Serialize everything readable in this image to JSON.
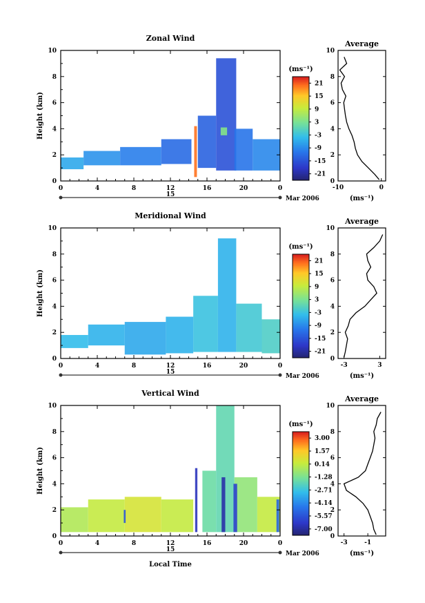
{
  "chart_data": [
    {
      "type": "heatmap",
      "title": "Zonal Wind",
      "ylabel": "Height (km)",
      "xlabel": "",
      "ylim": [
        0,
        10
      ],
      "xlim": [
        0,
        24
      ],
      "x_ticks": [
        "0",
        "4",
        "8",
        "12",
        "16",
        "20",
        "0"
      ],
      "y_ticks": [
        "0",
        "2",
        "4",
        "6",
        "8",
        "10"
      ],
      "date_bar": {
        "label": "15",
        "right_label": "Mar 2006"
      },
      "colorbar": {
        "unit": "(ms⁻¹)",
        "labels": [
          "21",
          "15",
          "9",
          "3",
          "-3",
          "-9",
          "-15",
          "-21"
        ],
        "range": [
          -24,
          24
        ]
      },
      "patches": [
        {
          "t": [
            0.0,
            2.5
          ],
          "h": [
            0.9,
            1.8
          ],
          "v": -6
        },
        {
          "t": [
            2.5,
            6.5
          ],
          "h": [
            1.2,
            2.3
          ],
          "v": -8
        },
        {
          "t": [
            6.5,
            11.0
          ],
          "h": [
            1.2,
            2.6
          ],
          "v": -10
        },
        {
          "t": [
            11.0,
            14.3
          ],
          "h": [
            1.3,
            3.2
          ],
          "v": -12
        },
        {
          "t": [
            15.0,
            17.0
          ],
          "h": [
            1.0,
            5.0
          ],
          "v": -13
        },
        {
          "t": [
            17.0,
            19.2
          ],
          "h": [
            0.8,
            9.4
          ],
          "v": -15
        },
        {
          "t": [
            19.0,
            21.0
          ],
          "h": [
            0.8,
            4.0
          ],
          "v": -11
        },
        {
          "t": [
            21.0,
            24.0
          ],
          "h": [
            0.8,
            3.2
          ],
          "v": -9
        },
        {
          "t": [
            14.6,
            14.9
          ],
          "h": [
            0.3,
            4.2
          ],
          "v": 20
        },
        {
          "t": [
            17.5,
            18.2
          ],
          "h": [
            3.5,
            4.1
          ],
          "v": 4
        }
      ],
      "average_profile": {
        "title": "Average",
        "xlabel": "(ms⁻¹)",
        "x_ticks": [
          "-10",
          "0"
        ],
        "xlim": [
          -10,
          1
        ],
        "height": [
          0.1,
          0.5,
          1.0,
          1.5,
          2.0,
          2.5,
          3.0,
          3.5,
          4.0,
          4.5,
          5.0,
          5.5,
          6.0,
          6.5,
          7.0,
          7.5,
          8.0,
          8.5,
          9.0,
          9.5
        ],
        "value": [
          -0.5,
          -1.5,
          -3.0,
          -4.5,
          -5.5,
          -6.0,
          -6.3,
          -6.8,
          -7.5,
          -8.0,
          -8.3,
          -8.5,
          -8.7,
          -8.2,
          -9.0,
          -9.3,
          -8.5,
          -9.6,
          -8.0,
          -8.6
        ]
      }
    },
    {
      "type": "heatmap",
      "title": "Meridional Wind",
      "ylabel": "Height (km)",
      "xlabel": "",
      "ylim": [
        0,
        10
      ],
      "xlim": [
        0,
        24
      ],
      "x_ticks": [
        "0",
        "4",
        "8",
        "12",
        "16",
        "20",
        "0"
      ],
      "y_ticks": [
        "0",
        "2",
        "4",
        "6",
        "8",
        "10"
      ],
      "date_bar": {
        "label": "15",
        "right_label": "Mar 2006"
      },
      "colorbar": {
        "unit": "(ms⁻¹)",
        "labels": [
          "21",
          "15",
          "9",
          "3",
          "-3",
          "-9",
          "-15",
          "-21"
        ],
        "range": [
          -24,
          24
        ]
      },
      "patches": [
        {
          "t": [
            0.0,
            3.0
          ],
          "h": [
            0.8,
            1.8
          ],
          "v": -4
        },
        {
          "t": [
            3.0,
            7.0
          ],
          "h": [
            1.0,
            2.6
          ],
          "v": -5
        },
        {
          "t": [
            7.0,
            11.5
          ],
          "h": [
            0.3,
            2.8
          ],
          "v": -6
        },
        {
          "t": [
            11.5,
            14.5
          ],
          "h": [
            0.4,
            3.2
          ],
          "v": -5
        },
        {
          "t": [
            14.5,
            17.2
          ],
          "h": [
            0.5,
            4.8
          ],
          "v": -3
        },
        {
          "t": [
            17.2,
            19.2
          ],
          "h": [
            0.5,
            9.2
          ],
          "v": -5
        },
        {
          "t": [
            19.2,
            22.0
          ],
          "h": [
            0.5,
            4.2
          ],
          "v": -2
        },
        {
          "t": [
            22.0,
            24.0
          ],
          "h": [
            0.4,
            3.0
          ],
          "v": -1
        }
      ],
      "average_profile": {
        "title": "Average",
        "xlabel": "(ms⁻¹)",
        "x_ticks": [
          "-3",
          "3"
        ],
        "xlim": [
          -4,
          4
        ],
        "height": [
          0.1,
          0.5,
          1.0,
          1.5,
          2.0,
          2.5,
          3.0,
          3.5,
          4.0,
          4.5,
          5.0,
          5.5,
          6.0,
          6.5,
          7.0,
          7.5,
          8.0,
          8.5,
          9.0,
          9.5
        ],
        "value": [
          -3.0,
          -2.8,
          -2.6,
          -2.4,
          -2.8,
          -2.3,
          -2.0,
          -1.0,
          0.5,
          1.5,
          2.5,
          2.0,
          1.0,
          0.8,
          1.5,
          1.0,
          0.8,
          2.0,
          3.0,
          3.5
        ]
      }
    },
    {
      "type": "heatmap",
      "title": "Vertical Wind",
      "ylabel": "Height (km)",
      "xlabel": "Local Time",
      "ylim": [
        0,
        10
      ],
      "xlim": [
        0,
        24
      ],
      "x_ticks": [
        "0",
        "4",
        "8",
        "12",
        "16",
        "20",
        "0"
      ],
      "y_ticks": [
        "0",
        "2",
        "4",
        "6",
        "8",
        "10"
      ],
      "date_bar": {
        "label": "15",
        "right_label": "Mar 2006"
      },
      "colorbar": {
        "unit": "(ms⁻¹)",
        "labels": [
          "3.00",
          "1.57",
          "0.14",
          "-1.28",
          "-2.71",
          "-4.14",
          "-5.57",
          "-7.00"
        ],
        "range": [
          -7.7,
          3.7
        ]
      },
      "patches": [
        {
          "t": [
            0.0,
            3.0
          ],
          "h": [
            0.3,
            2.2
          ],
          "v": -0.2
        },
        {
          "t": [
            3.0,
            7.0
          ],
          "h": [
            0.3,
            2.8
          ],
          "v": 0.2
        },
        {
          "t": [
            7.0,
            11.0
          ],
          "h": [
            0.3,
            3.0
          ],
          "v": 0.6
        },
        {
          "t": [
            11.0,
            14.5
          ],
          "h": [
            0.3,
            2.8
          ],
          "v": 0.2
        },
        {
          "t": [
            15.5,
            17.0
          ],
          "h": [
            0.3,
            5.0
          ],
          "v": -1.6
        },
        {
          "t": [
            17.0,
            19.0
          ],
          "h": [
            0.3,
            10.0
          ],
          "v": -1.8
        },
        {
          "t": [
            19.0,
            21.5
          ],
          "h": [
            0.3,
            4.5
          ],
          "v": -0.8
        },
        {
          "t": [
            21.5,
            24.0
          ],
          "h": [
            0.3,
            3.0
          ],
          "v": 0.2
        },
        {
          "t": [
            14.7,
            14.95
          ],
          "h": [
            0.3,
            5.2
          ],
          "v": -6.5
        },
        {
          "t": [
            17.6,
            18.0
          ],
          "h": [
            0.3,
            4.5
          ],
          "v": -6.8
        },
        {
          "t": [
            18.9,
            19.3
          ],
          "h": [
            0.3,
            4.0
          ],
          "v": -6.0
        },
        {
          "t": [
            23.6,
            23.9
          ],
          "h": [
            0.3,
            2.8
          ],
          "v": -5.0
        },
        {
          "t": [
            6.9,
            7.1
          ],
          "h": [
            1.0,
            2.0
          ],
          "v": -5.5
        }
      ],
      "average_profile": {
        "title": "Average",
        "xlabel": "(ms⁻¹)",
        "x_ticks": [
          "-3",
          "-1"
        ],
        "xlim": [
          -3.5,
          0.5
        ],
        "height": [
          0.1,
          0.5,
          1.0,
          1.5,
          2.0,
          2.5,
          3.0,
          3.5,
          4.0,
          4.5,
          5.0,
          5.5,
          6.0,
          6.5,
          7.0,
          7.5,
          8.0,
          8.5,
          9.0,
          9.5
        ],
        "value": [
          -0.3,
          -0.5,
          -0.6,
          -0.8,
          -1.0,
          -1.4,
          -2.0,
          -2.8,
          -3.0,
          -1.8,
          -1.2,
          -1.0,
          -0.8,
          -0.6,
          -0.5,
          -0.4,
          -0.5,
          -0.3,
          -0.2,
          0.1
        ]
      }
    }
  ]
}
